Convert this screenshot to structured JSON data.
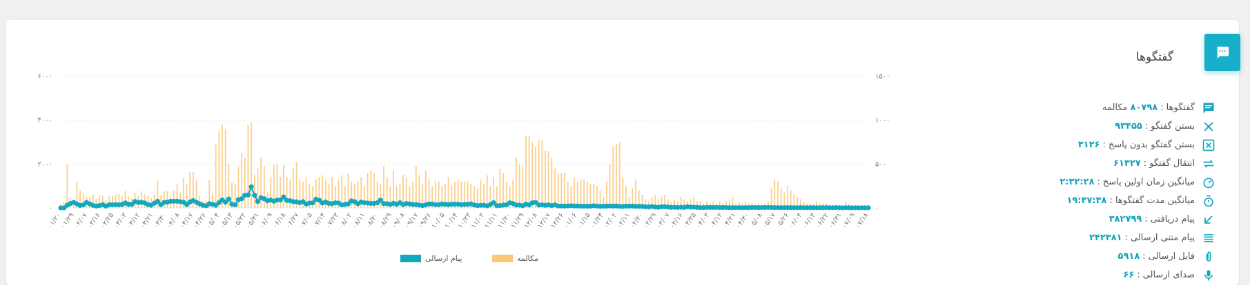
{
  "card": {
    "title": "گفتگوها",
    "icon": "chat-bubble-icon"
  },
  "stats": [
    {
      "icon": "conversations-icon",
      "label": "گفتگوها",
      "value": "۸۰۷۹۸",
      "unit": "مکالمه"
    },
    {
      "icon": "close-icon",
      "label": "بستن گفتگو",
      "value": "۹۳۴۵۵",
      "unit": ""
    },
    {
      "icon": "close-box-icon",
      "label": "بستن گفتگو بدون پاسخ",
      "value": "۳۱۲۶",
      "unit": ""
    },
    {
      "icon": "transfer-icon",
      "label": "انتقال گفتگو",
      "value": "۶۱۳۲۷",
      "unit": ""
    },
    {
      "icon": "speedometer-icon",
      "label": "میانگین زمان اولین پاسخ",
      "value": "۲:۳۲:۲۸",
      "unit": ""
    },
    {
      "icon": "timer-icon",
      "label": "میانگین مدت گفتگوها",
      "value": "۱۹:۳۷:۳۸",
      "unit": ""
    },
    {
      "icon": "incoming-arrow-icon",
      "label": "پیام دریافتی",
      "value": "۳۸۲۷۹۹",
      "unit": ""
    },
    {
      "icon": "text-lines-icon",
      "label": "پیام متنی ارسالی",
      "value": "۲۴۲۳۸۱",
      "unit": ""
    },
    {
      "icon": "paperclip-icon",
      "label": "فایل ارسالی",
      "value": "۵۹۱۸",
      "unit": ""
    },
    {
      "icon": "microphone-icon",
      "label": "صدای ارسالی",
      "value": "۶۶",
      "unit": ""
    }
  ],
  "colors": {
    "accent": "#16aec9",
    "bar_series": "#fcc777",
    "line_series": "#12a8bf",
    "grid": "#e8e8e8"
  },
  "chart_data": {
    "type": "line",
    "series": [
      {
        "name": "مکالمه",
        "kind": "bar",
        "axis": "left",
        "color": "#fcc777",
        "values": [
          180,
          240,
          2000,
          420,
          300,
          1200,
          800,
          680,
          520,
          470,
          610,
          420,
          580,
          560,
          360,
          540,
          560,
          610,
          620,
          530,
          780,
          510,
          430,
          680,
          560,
          770,
          610,
          580,
          450,
          600,
          1240,
          560,
          750,
          790,
          480,
          780,
          1080,
          700,
          1370,
          1100,
          1640,
          1640,
          1270,
          560,
          320,
          360,
          1260,
          680,
          2900,
          3500,
          3800,
          3600,
          2000,
          1160,
          1100,
          1900,
          2500,
          2300,
          3800,
          3900,
          1500,
          1800,
          2300,
          1900,
          700,
          1400,
          1950,
          2000,
          1400,
          1960,
          1420,
          1300,
          1800,
          2100,
          1300,
          1200,
          1400,
          1100,
          1000,
          1300,
          1400,
          1500,
          1300,
          1100,
          1400,
          1000,
          1300,
          1500,
          1000,
          1600,
          1200,
          1100,
          1200,
          1400,
          1000,
          1600,
          1700,
          1600,
          1200,
          1100,
          1900,
          1400,
          1000,
          1700,
          1000,
          1100,
          1500,
          1400,
          1000,
          1200,
          1900,
          1500,
          1100,
          1700,
          1300,
          1000,
          1200,
          1200,
          1000,
          1100,
          1400,
          1000,
          1200,
          1300,
          1200,
          1200,
          1200,
          1100,
          1000,
          900,
          1300,
          1100,
          1500,
          1000,
          1400,
          1000,
          1800,
          1600,
          1200,
          1000,
          1300,
          2300,
          2000,
          1900,
          3300,
          3300,
          3000,
          2800,
          3100,
          3100,
          2600,
          2600,
          2300,
          1800,
          1600,
          1600,
          1600,
          1200,
          1000,
          1400,
          1200,
          1300,
          1300,
          1200,
          1100,
          1100,
          1000,
          800,
          500,
          1200,
          2000,
          2800,
          2900,
          3000,
          1400,
          1000,
          500,
          900,
          1300,
          800,
          600,
          400,
          300,
          500,
          600,
          400,
          500,
          600,
          400,
          300,
          400,
          300,
          500,
          400,
          300,
          400,
          500,
          300,
          300,
          200,
          300,
          200,
          300,
          200,
          300,
          200,
          300,
          400,
          500,
          200,
          300,
          200,
          300,
          200,
          200,
          100,
          200,
          100,
          200,
          300,
          900,
          1300,
          1200,
          900,
          700,
          1000,
          800,
          600,
          500,
          400,
          300,
          200,
          200,
          200,
          300,
          200,
          200,
          200,
          100,
          100,
          100,
          100,
          100,
          300,
          200
        ]
      },
      {
        "name": "پیام ارسالی",
        "kind": "line",
        "axis": "right",
        "color": "#12a8bf",
        "values": [
          0,
          0,
          31,
          50,
          63,
          45,
          28,
          35,
          62,
          45,
          29,
          21,
          27,
          37,
          20,
          36,
          36,
          37,
          35,
          39,
          56,
          40,
          41,
          73,
          62,
          64,
          56,
          38,
          31,
          54,
          75,
          37,
          62,
          66,
          75,
          76,
          76,
          71,
          65,
          38,
          67,
          83,
          65,
          46,
          30,
          25,
          48,
          41,
          30,
          60,
          91,
          65,
          101,
          43,
          35,
          94,
          104,
          144,
          148,
          240,
          145,
          73,
          116,
          104,
          81,
          90,
          76,
          90,
          91,
          125,
          85,
          82,
          71,
          69,
          59,
          71,
          44,
          55,
          57,
          99,
          88,
          55,
          67,
          51,
          48,
          58,
          55,
          35,
          39,
          46,
          80,
          71,
          47,
          67,
          58,
          56,
          51,
          51,
          58,
          89,
          49,
          48,
          40,
          52,
          41,
          59,
          38,
          50,
          46,
          39,
          38,
          33,
          27,
          35,
          45,
          45,
          37,
          37,
          44,
          42,
          38,
          42,
          42,
          42,
          36,
          40,
          41,
          45,
          34,
          27,
          30,
          31,
          24,
          39,
          60,
          26,
          27,
          33,
          35,
          58,
          49,
          33,
          32,
          25,
          43,
          34,
          58,
          62,
          33,
          35,
          30,
          35,
          27,
          35,
          22,
          21,
          21,
          23,
          25,
          22,
          22,
          20,
          20,
          19,
          20,
          24,
          21,
          18,
          20,
          20,
          22,
          20,
          22,
          18,
          17,
          20,
          20,
          21,
          18,
          18,
          17,
          13,
          11,
          15,
          10,
          7,
          13,
          14,
          10,
          6,
          7,
          5,
          7,
          5,
          13,
          8,
          8,
          6,
          3,
          3,
          5,
          5,
          5,
          5,
          4,
          4,
          4,
          2,
          3,
          2,
          3,
          2,
          3,
          2,
          4,
          5,
          3,
          4,
          4,
          5,
          4,
          3,
          3,
          2,
          3,
          3,
          3,
          3,
          2,
          3,
          2,
          2,
          2,
          2,
          2,
          2,
          2,
          3,
          2,
          2,
          3,
          2,
          1,
          2,
          1,
          1,
          1,
          1,
          1,
          1,
          1
        ]
      }
    ],
    "left_axis": {
      "min": 0,
      "max": 6000,
      "ticks": [
        0,
        2000,
        4000,
        6000
      ],
      "tick_labels": [
        "۰",
        "۲۰۰۰",
        "۴۰۰۰",
        "۶۰۰۰"
      ]
    },
    "right_axis": {
      "min": 0,
      "max": 1500,
      "ticks": [
        0,
        500,
        1000,
        1500
      ],
      "tick_labels": [
        "۰",
        "۵۰۰",
        "۱۰۰۰",
        "۱۵۰۰"
      ]
    },
    "x_tick_labels": [
      "۰۱/۲۰",
      "۰۱/۲۹",
      "۰۲/۰۷",
      "۰۲/۱۶",
      "۰۲/۲۵",
      "۰۳/۰۳",
      "۰۳/۱۲",
      "۰۳/۲۱",
      "۰۳/۳۰",
      "۰۴/۰۸",
      "۰۴/۱۷",
      "۰۴/۲۶",
      "۰۵/۰۴",
      "۰۵/۱۳",
      "۰۵/۲۲",
      "۰۵/۳۱",
      "۰۶/۰۹",
      "۰۶/۱۸",
      "۰۶/۲۷",
      "۰۷/۰۵",
      "۰۷/۱۴",
      "۰۷/۲۳",
      "۰۸/۰۲",
      "۰۸/۱۱",
      "۰۸/۲۰",
      "۰۸/۲۹",
      "۰۹/۰۸",
      "۰۹/۱۷",
      "۰۹/۲۶",
      "۱۰/۰۵",
      "۱۰/۱۴",
      "۱۰/۲۳",
      "۱۱/۰۲",
      "۱۱/۱۱",
      "۱۱/۲۰",
      "۱۱/۲۹",
      "۱۲/۰۸",
      "۱۲/۱۷",
      "۱۲/۲۶",
      "۰۱/۰۶",
      "۰۱/۱۵",
      "۰۱/۲۴",
      "۰۲/۰۲",
      "۰۲/۱۱",
      "۰۲/۲۰",
      "۰۲/۲۹",
      "۰۳/۰۷",
      "۰۳/۱۶",
      "۰۳/۲۵",
      "۰۴/۰۳",
      "۰۴/۱۲",
      "۰۴/۲۱",
      "۰۴/۳۰",
      "۰۵/۰۸",
      "۰۵/۱۷",
      "۰۵/۲۶",
      "۰۶/۰۴",
      "۰۶/۱۳",
      "۰۶/۲۲",
      "۰۶/۳۱",
      "۰۷/۰۹",
      "۰۷/۱۸"
    ],
    "grid": true,
    "legend": {
      "placement": "bottom-center"
    }
  }
}
